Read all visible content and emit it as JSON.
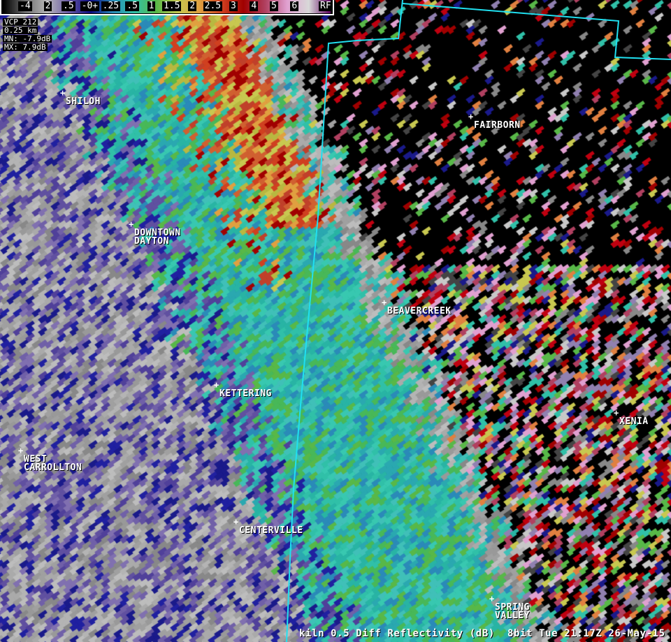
{
  "legend": {
    "labels": [
      "-4",
      "2",
      ".5",
      "-0+",
      ".25",
      ".5",
      "1",
      "1.5",
      "2",
      "2.5",
      "3",
      "4",
      "5",
      "6",
      "RF"
    ],
    "colors": [
      "#000000",
      "#6e6e6e",
      "#b8b8b8",
      "#6a5aa8",
      "#0a0a80",
      "#2a8ab8",
      "#30c0a8",
      "#58b848",
      "#c8c850",
      "#e0a040",
      "#d04020",
      "#a00000",
      "#b04060",
      "#e0a0d0",
      "#d8d8d8",
      "#600060"
    ]
  },
  "info": {
    "vcp": "VCP 212",
    "resolution": "0.25 km",
    "min": "MN: -7.9dB",
    "max": "MX: 7.9dB"
  },
  "cities": [
    {
      "name": "SHILOH"
    },
    {
      "name": "DOWNTOWN\nDAYTON"
    },
    {
      "name": "FAIRBORN"
    },
    {
      "name": "BEAVERCREEK"
    },
    {
      "name": "KETTERING"
    },
    {
      "name": "XENIA"
    },
    {
      "name": "WEST\nCARROLLTON"
    },
    {
      "name": "CENTERVILLE"
    },
    {
      "name": "SPRING\nVALLEY"
    }
  ],
  "status": "kiln 0.5 Diff Reflectivity (dB)  8bit Tue 21:17Z 26-May-15",
  "boundary_color": "#20e0f0"
}
